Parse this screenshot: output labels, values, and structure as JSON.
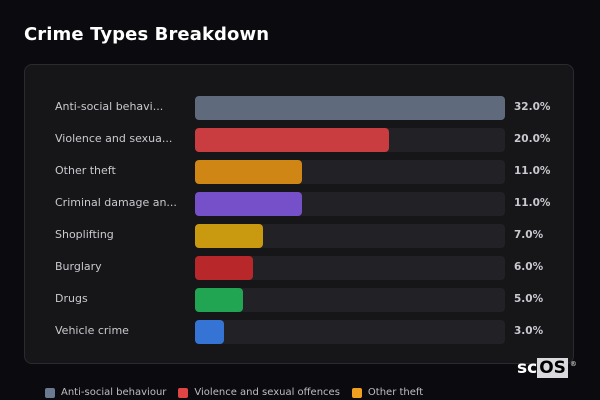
{
  "title": "Crime Types Breakdown",
  "chart_data": {
    "type": "bar",
    "orientation": "horizontal",
    "title": "Crime Types Breakdown",
    "categories": [
      "Anti-social behaviour",
      "Violence and sexual offences",
      "Other theft",
      "Criminal damage and arson",
      "Shoplifting",
      "Burglary",
      "Drugs",
      "Vehicle crime"
    ],
    "display_labels": [
      "Anti-social behavi...",
      "Violence and sexua...",
      "Other theft",
      "Criminal damage an...",
      "Shoplifting",
      "Burglary",
      "Drugs",
      "Vehicle crime"
    ],
    "values": [
      32.0,
      20.0,
      11.0,
      11.0,
      7.0,
      6.0,
      5.0,
      3.0
    ],
    "value_labels": [
      "32.0%",
      "20.0%",
      "11.0%",
      "11.0%",
      "7.0%",
      "6.0%",
      "5.0%",
      "3.0%"
    ],
    "colors": [
      "#5f6b7c",
      "#c93c3f",
      "#cf8614",
      "#7650c8",
      "#c99a10",
      "#b8282a",
      "#22a552",
      "#3573d5"
    ],
    "xlabel": "",
    "ylabel": "",
    "xlim": [
      0,
      32
    ],
    "grid": false,
    "legend_position": "bottom"
  },
  "rows": [
    {
      "label": "Anti-social behavi...",
      "pct": "32.0%",
      "value": 32.0,
      "color": "#5f6b7c"
    },
    {
      "label": "Violence and sexua...",
      "pct": "20.0%",
      "value": 20.0,
      "color": "#c93c3f"
    },
    {
      "label": "Other theft",
      "pct": "11.0%",
      "value": 11.0,
      "color": "#cf8614"
    },
    {
      "label": "Criminal damage an...",
      "pct": "11.0%",
      "value": 11.0,
      "color": "#7650c8"
    },
    {
      "label": "Shoplifting",
      "pct": "7.0%",
      "value": 7.0,
      "color": "#c99a10"
    },
    {
      "label": "Burglary",
      "pct": "6.0%",
      "value": 6.0,
      "color": "#b8282a"
    },
    {
      "label": "Drugs",
      "pct": "5.0%",
      "value": 5.0,
      "color": "#22a552"
    },
    {
      "label": "Vehicle crime",
      "pct": "3.0%",
      "value": 3.0,
      "color": "#3573d5"
    }
  ],
  "legend": [
    {
      "label": "Anti-social behaviour",
      "color": "#6b7a90"
    },
    {
      "label": "Violence and sexual offences",
      "color": "#e04546"
    },
    {
      "label": "Other theft",
      "color": "#f0a020"
    }
  ],
  "watermark": {
    "prefix": "sc",
    "suffix": "OS",
    "mark": "®"
  }
}
